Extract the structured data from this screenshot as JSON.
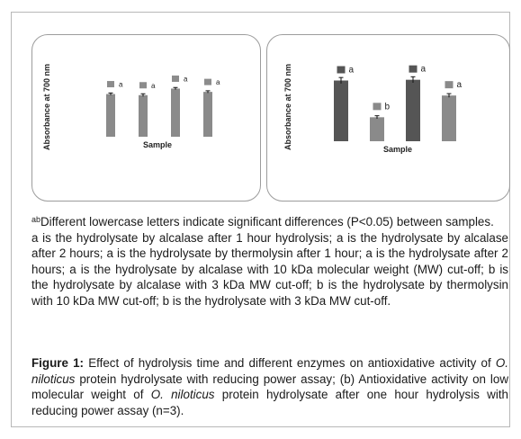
{
  "chart_data": [
    {
      "type": "bar",
      "title": "",
      "xlabel": "Sample",
      "ylabel": "Absorbance at 700 nm",
      "grid": false,
      "legend": "none",
      "categories": [
        "",
        "",
        "",
        ""
      ],
      "values": [
        0.78,
        0.76,
        0.88,
        0.82
      ],
      "errors": [
        0.02,
        0.025,
        0.02,
        0.02
      ],
      "significance": [
        "a",
        "a",
        "a",
        "a"
      ],
      "ylim": [
        0,
        1.2
      ],
      "colors": {
        "bar": "#8a8a8a",
        "marker": "#8c8c8c"
      }
    },
    {
      "type": "bar",
      "title": "",
      "xlabel": "Sample",
      "ylabel": "Absorbance at 700 nm",
      "grid": false,
      "legend": "none",
      "categories": [
        "",
        "",
        "",
        ""
      ],
      "values": [
        0.81,
        0.32,
        0.82,
        0.61
      ],
      "errors": [
        0.04,
        0.02,
        0.04,
        0.025
      ],
      "significance": [
        "a",
        "b",
        "a",
        "a"
      ],
      "ylim": [
        0,
        1.2
      ],
      "colors": [
        {
          "bar": "#555555",
          "marker": "#555555"
        },
        {
          "bar": "#8a8a8a",
          "marker": "#8a8a8a"
        },
        {
          "bar": "#555555",
          "marker": "#555555"
        },
        {
          "bar": "#8a8a8a",
          "marker": "#8a8a8a"
        }
      ]
    }
  ],
  "note": {
    "sup": "ab",
    "line1": "Different lowercase letters indicate significant differences (P<0.05) between samples.",
    "line2": "a is the hydrolysate by alcalase after 1 hour hydrolysis; a is the hydrolysate by alcalase after 2 hours; a is the hydrolysate by thermolysin after 1 hour; a is the hydrolysate after 2 hours; a is the hydrolysate by alcalase with 10 kDa molecular weight (MW) cut-off; b is the hydrolysate by alcalase with 3 kDa MW cut-off; b is the hydrolysate by thermolysin with 10 kDa MW cut-off; b is the hydrolysate with 3 kDa MW cut-off."
  },
  "caption": {
    "label": "Figure 1:",
    "part1": " Effect of hydrolysis time and different enzymes on antioxidative activity of ",
    "species1": "O. niloticus",
    "part2": " protein hydrolysate with reducing power assay; (b) Antioxidative activity on low molecular weight of ",
    "species2": "O. niloticus",
    "part3": " protein hydrolysate after one hour hydrolysis with reducing power assay (n=3)."
  }
}
